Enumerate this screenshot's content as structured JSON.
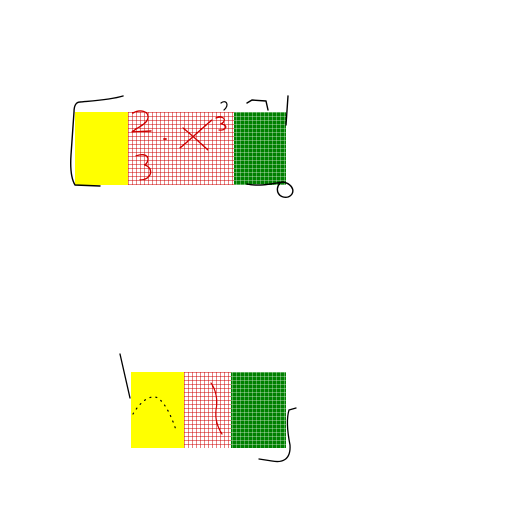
{
  "colors": {
    "background": "#ffffff",
    "yellow": "#ffff00",
    "red_grid": "#cc0000",
    "green": "#008000",
    "green_grid": "#ffffff",
    "ink": "#000000",
    "red_ink": "#cc0000"
  },
  "strips": [
    {
      "name": "top-strip",
      "segments": [
        "yellow",
        "red-grid",
        "green-grid"
      ]
    },
    {
      "name": "bottom-strip",
      "segments": [
        "yellow",
        "red-grid",
        "green-grid"
      ]
    }
  ]
}
